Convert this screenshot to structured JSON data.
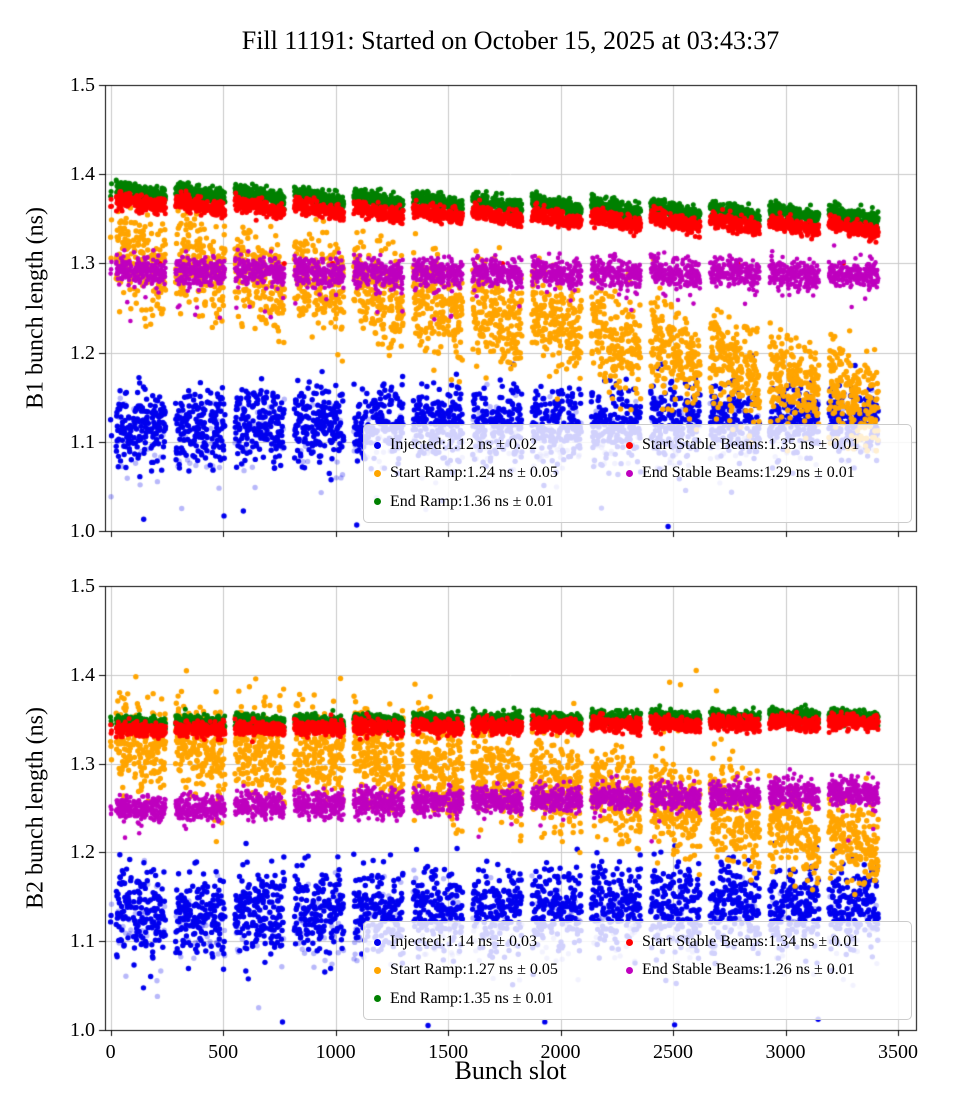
{
  "title": "Fill 11191: Started on October 15, 2025 at 03:43:37",
  "xlabel": "Bunch slot",
  "train_pattern": {
    "start": 25,
    "bands": 13,
    "trains_per_band": 3,
    "train_len": 68,
    "intra_gap": 8,
    "band_pitch": 264,
    "pilot_slots": [
      0,
      2,
      4
    ]
  },
  "chart_data": [
    {
      "type": "scatter",
      "title": "",
      "ylabel": "B1 bunch length (ns)",
      "xlim": [
        -25,
        3580
      ],
      "ylim": [
        1.0,
        1.5
      ],
      "xticks": [
        0,
        500,
        1000,
        1500,
        2000,
        2500,
        3000,
        3500
      ],
      "xtick_labels": [
        "0",
        "500",
        "1000",
        "1500",
        "2000",
        "2500",
        "3000",
        "3500"
      ],
      "yticks": [
        1.0,
        1.1,
        1.2,
        1.3,
        1.4,
        1.5
      ],
      "ytick_labels": [
        "1.0",
        "1.1",
        "1.2",
        "1.3",
        "1.4",
        "1.5"
      ],
      "grid": true,
      "legend_position": "lower right",
      "series": [
        {
          "name": "Injected",
          "label": "Injected:1.12 ns ± 0.02",
          "color": "#0000ee",
          "mean_ns": 1.12,
          "std_ns": 0.02,
          "gen": {
            "base": 1.118,
            "slope": 0.006,
            "pw": 1,
            "std": 0.021,
            "band_slope": 0.0,
            "clip": [
              1.005,
              1.2
            ],
            "r": 2.7,
            "faded_fraction": 0.13,
            "outliers": {
              "frac": 0.004,
              "lo": 1.0,
              "hi": 1.06
            }
          }
        },
        {
          "name": "Start Ramp",
          "label": "Start Ramp:1.24 ns ± 0.05",
          "color": "#ffa500",
          "mean_ns": 1.24,
          "std_ns": 0.05,
          "gen": {
            "base": 1.315,
            "slope": -0.165,
            "pw": 1.35,
            "std": 0.027,
            "band_slope": -0.02,
            "clip": [
              1.09,
              1.4
            ],
            "r": 2.7
          }
        },
        {
          "name": "End Ramp",
          "label": "End Ramp:1.36 ns ± 0.01",
          "color": "#008000",
          "mean_ns": 1.36,
          "std_ns": 0.01,
          "gen": {
            "base": 1.386,
            "slope": -0.03,
            "pw": 1,
            "std": 0.0045,
            "band_slope": -0.009,
            "clip": [
              1.3,
              1.42
            ],
            "r": 2.5
          }
        },
        {
          "name": "Start Stable Beams",
          "label": "Start Stable Beams:1.35 ns ± 0.01",
          "color": "#ff0000",
          "mean_ns": 1.35,
          "std_ns": 0.01,
          "gen": {
            "base": 1.373,
            "slope": -0.031,
            "pw": 1,
            "std": 0.0045,
            "band_slope": -0.009,
            "clip": [
              1.3,
              1.41
            ],
            "r": 2.5,
            "outliers": {
              "frac": 0.002,
              "lo": 1.23,
              "hi": 1.28
            }
          }
        },
        {
          "name": "End Stable Beams",
          "label": "End Stable Beams:1.29 ns ± 0.01",
          "color": "#bf00bf",
          "mean_ns": 1.29,
          "std_ns": 0.01,
          "gen": {
            "base": 1.293,
            "slope": -0.004,
            "pw": 1,
            "std": 0.0085,
            "band_slope": -0.004,
            "clip": [
              1.22,
              1.33
            ],
            "r": 2.3,
            "outliers": {
              "frac": 0.008,
              "lo": 1.235,
              "hi": 1.27
            }
          }
        }
      ]
    },
    {
      "type": "scatter",
      "title": "",
      "ylabel": "B2 bunch length (ns)",
      "xlim": [
        -25,
        3580
      ],
      "ylim": [
        1.0,
        1.5
      ],
      "xticks": [
        0,
        500,
        1000,
        1500,
        2000,
        2500,
        3000,
        3500
      ],
      "xtick_labels": [
        "0",
        "500",
        "1000",
        "1500",
        "2000",
        "2500",
        "3000",
        "3500"
      ],
      "yticks": [
        1.0,
        1.1,
        1.2,
        1.3,
        1.4,
        1.5
      ],
      "ytick_labels": [
        "1.0",
        "1.1",
        "1.2",
        "1.3",
        "1.4",
        "1.5"
      ],
      "grid": true,
      "legend_position": "lower right",
      "series": [
        {
          "name": "Injected",
          "label": "Injected:1.14 ns ± 0.03",
          "color": "#0000ee",
          "mean_ns": 1.14,
          "std_ns": 0.03,
          "gen": {
            "base": 1.132,
            "slope": 0.008,
            "pw": 1,
            "std": 0.024,
            "band_slope": 0.0,
            "clip": [
              1.005,
              1.21
            ],
            "r": 2.7,
            "faded_fraction": 0.13,
            "outliers": {
              "frac": 0.004,
              "lo": 1.0,
              "hi": 1.07
            }
          }
        },
        {
          "name": "Start Ramp",
          "label": "Start Ramp:1.27 ns ± 0.05",
          "color": "#ffa500",
          "mean_ns": 1.27,
          "std_ns": 0.05,
          "gen": {
            "base": 1.33,
            "slope": -0.115,
            "pw": 1.6,
            "std": 0.026,
            "band_slope": -0.018,
            "clip": [
              1.1,
              1.41
            ],
            "r": 2.7,
            "outliers": {
              "frac": 0.005,
              "lo": 1.355,
              "hi": 1.405
            }
          }
        },
        {
          "name": "End Ramp",
          "label": "End Ramp:1.35 ns ± 0.01",
          "color": "#008000",
          "mean_ns": 1.35,
          "std_ns": 0.01,
          "gen": {
            "base": 1.347,
            "slope": 0.009,
            "pw": 1,
            "std": 0.004,
            "band_slope": -0.004,
            "clip": [
              1.31,
              1.4
            ],
            "r": 2.5
          }
        },
        {
          "name": "Start Stable Beams",
          "label": "Start Stable Beams:1.34 ns ± 0.01",
          "color": "#ff0000",
          "mean_ns": 1.34,
          "std_ns": 0.01,
          "gen": {
            "base": 1.34,
            "slope": 0.009,
            "pw": 1,
            "std": 0.004,
            "band_slope": -0.004,
            "clip": [
              1.3,
              1.39
            ],
            "r": 2.5
          }
        },
        {
          "name": "End Stable Beams",
          "label": "End Stable Beams:1.26 ns ± 0.01",
          "color": "#bf00bf",
          "mean_ns": 1.26,
          "std_ns": 0.01,
          "gen": {
            "base": 1.25,
            "slope": 0.02,
            "pw": 1,
            "std": 0.0075,
            "band_slope": -0.003,
            "clip": [
              1.2,
              1.3
            ],
            "r": 2.3,
            "outliers": {
              "frac": 0.006,
              "lo": 1.21,
              "hi": 1.24
            }
          }
        }
      ]
    }
  ]
}
